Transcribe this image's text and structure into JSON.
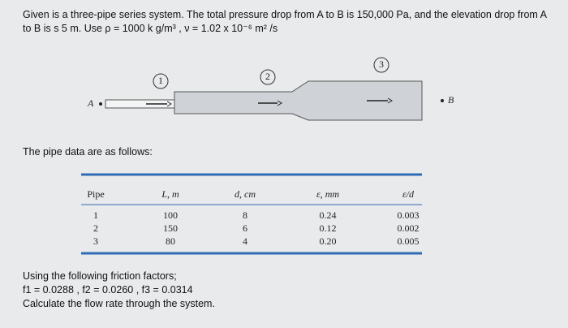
{
  "problem": {
    "statement": "Given is a three-pipe series system. The total pressure drop from A to B is 150,000 Pa, and the elevation drop from A to B is s 5 m. Use ρ = 1000 k g/m³ , ν = 1.02 x 10⁻⁶ m² /s"
  },
  "diagram": {
    "pipes": [
      "1",
      "2",
      "3"
    ],
    "point_a": "A",
    "point_b": "B"
  },
  "intro": "The pipe data are as follows:",
  "table": {
    "header": [
      "Pipe",
      "L, m",
      "d, cm",
      "ε, mm",
      "ε/d"
    ],
    "rows": [
      [
        "1",
        "100",
        "8",
        "0.24",
        "0.003"
      ],
      [
        "2",
        "150",
        "6",
        "0.12",
        "0.002"
      ],
      [
        "3",
        "80",
        "4",
        "0.20",
        "0.005"
      ]
    ]
  },
  "footer": {
    "lines": [
      "Using the following friction factors;",
      "f1 = 0.0288 , f2 = 0.0260 , f3 = 0.0314",
      "Calculate the flow rate through the system."
    ]
  }
}
